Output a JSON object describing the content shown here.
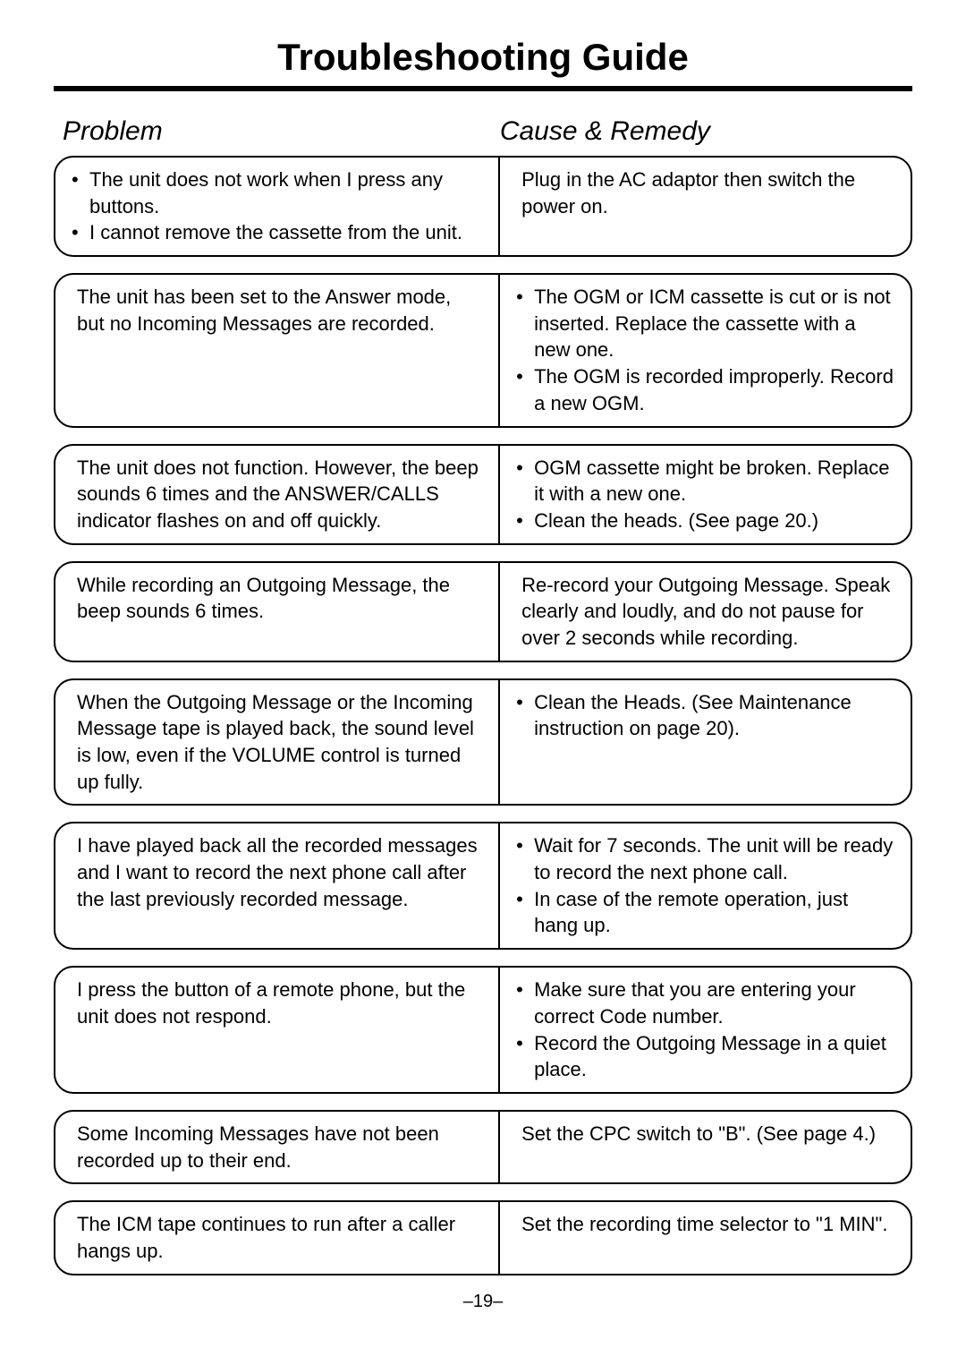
{
  "title": "Troubleshooting Guide",
  "headers": {
    "problem": "Problem",
    "remedy": "Cause & Remedy"
  },
  "page_number": "–19–",
  "rows": [
    {
      "problem_type": "bullets",
      "problem": [
        "The unit does not work when I press any buttons.",
        "I cannot remove the cassette from the unit."
      ],
      "remedy_type": "plain",
      "remedy": [
        "Plug in the AC adaptor then switch the power on."
      ]
    },
    {
      "problem_type": "plain",
      "problem": [
        "The unit has been set to the Answer mode, but no Incoming Messages are recorded."
      ],
      "remedy_type": "bullets",
      "remedy": [
        "The OGM or ICM cassette is cut or is not inserted. Replace the cassette with a new one.",
        "The OGM is recorded improperly. Record a new OGM."
      ]
    },
    {
      "problem_type": "plain",
      "problem": [
        "The unit does not function. However, the beep sounds 6 times and the ANSWER/CALLS indicator flashes on and off quickly."
      ],
      "remedy_type": "bullets",
      "remedy": [
        "OGM cassette might be broken. Replace it with a new one.",
        "Clean the heads. (See page 20.)"
      ]
    },
    {
      "problem_type": "plain",
      "problem": [
        "While recording an Outgoing Message, the beep sounds 6 times."
      ],
      "remedy_type": "plain",
      "remedy": [
        "Re-record your Outgoing Message. Speak clearly and loudly, and do not pause for over 2 seconds while recording."
      ]
    },
    {
      "problem_type": "plain",
      "problem": [
        "When the Outgoing Message or the Incoming Message tape is played back, the sound level is low, even if the VOLUME control is turned up fully."
      ],
      "remedy_type": "bullets",
      "remedy": [
        "Clean the Heads. (See Maintenance instruction on page 20)."
      ]
    },
    {
      "problem_type": "plain",
      "problem": [
        "I have played back all the recorded messages and I want to record the next phone call after the last previously recorded message."
      ],
      "remedy_type": "bullets",
      "remedy": [
        "Wait for 7 seconds. The unit will be ready to record the next phone call.",
        "In case of the remote operation, just hang up."
      ]
    },
    {
      "problem_type": "plain",
      "problem": [
        "I press the button of a remote phone, but the unit does not respond."
      ],
      "remedy_type": "bullets",
      "remedy": [
        "Make sure that you are entering your correct Code number.",
        "Record the Outgoing Message in a quiet place."
      ]
    },
    {
      "problem_type": "plain",
      "problem": [
        "Some Incoming Messages have not been recorded up to their end."
      ],
      "remedy_type": "plain",
      "remedy": [
        "Set the CPC switch to \"B\". (See page 4.)"
      ]
    },
    {
      "problem_type": "plain",
      "problem": [
        "The ICM tape continues to run after a caller hangs up."
      ],
      "remedy_type": "plain",
      "remedy": [
        "Set the recording time selector to \"1 MIN\"."
      ]
    }
  ]
}
